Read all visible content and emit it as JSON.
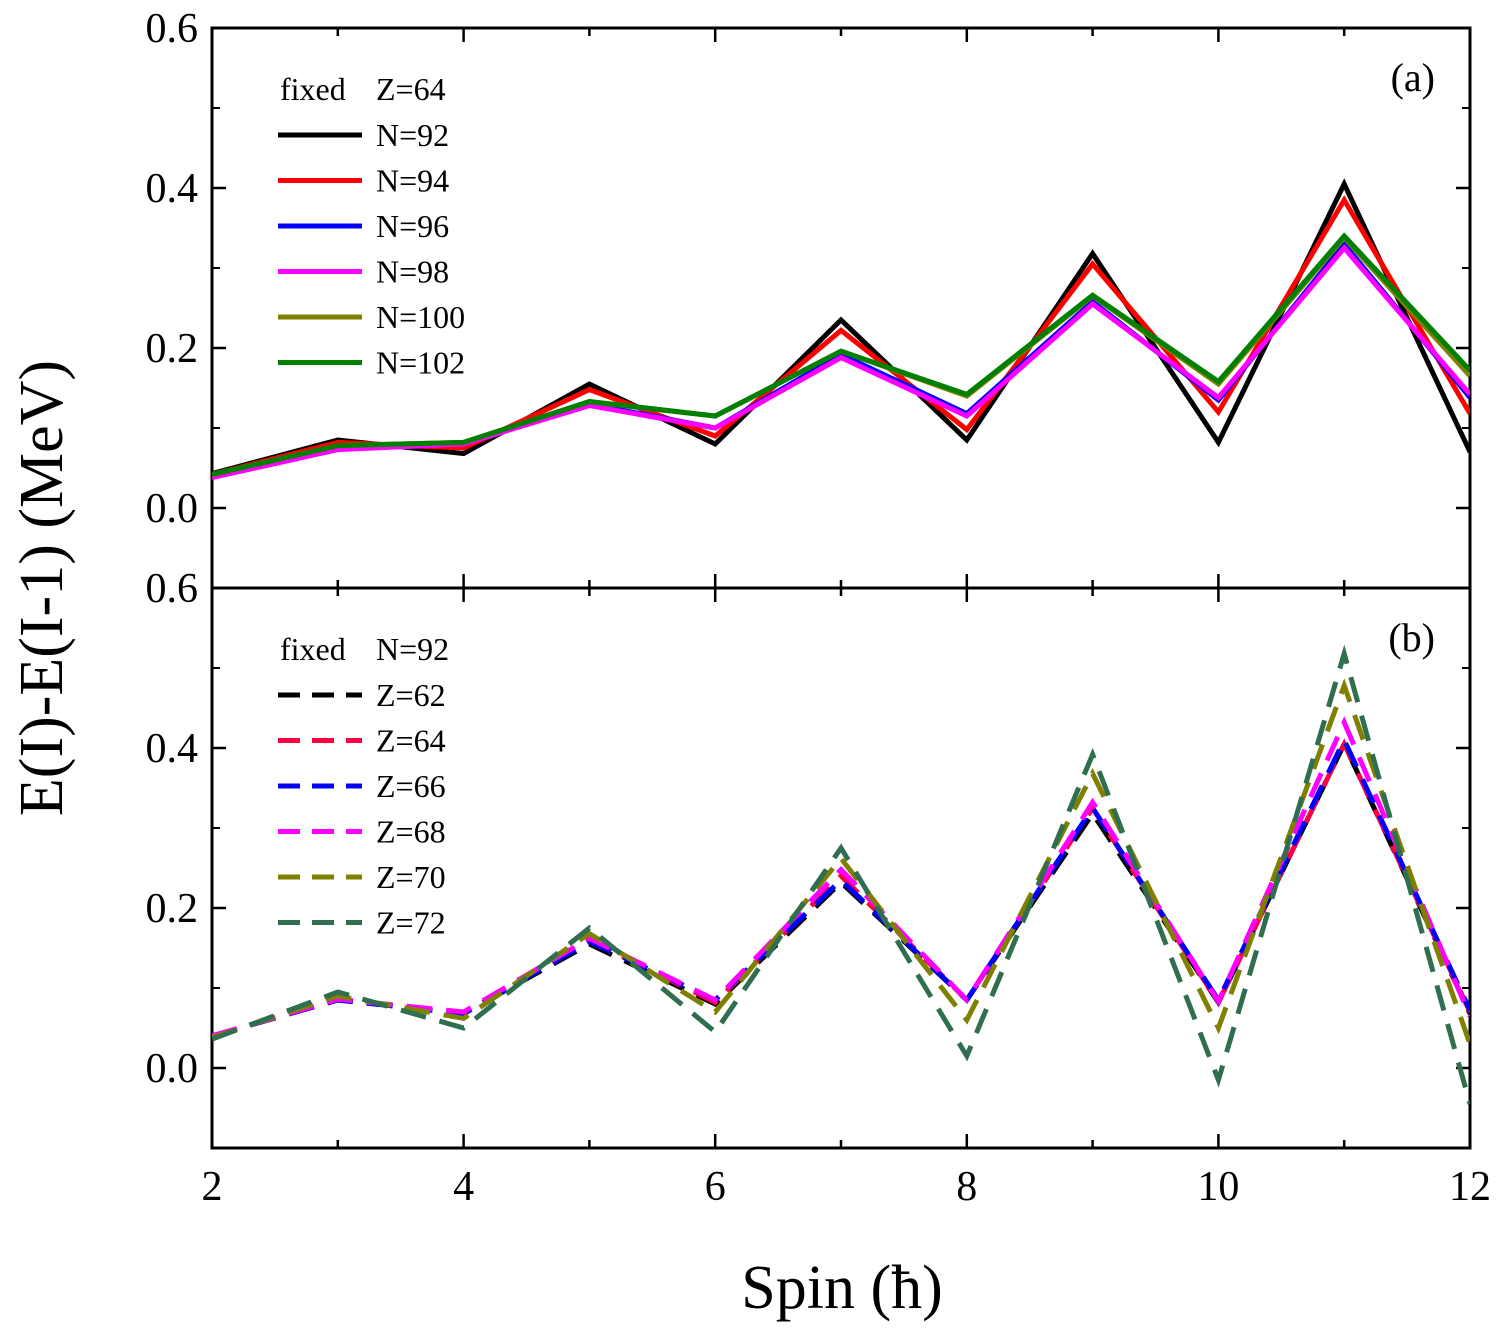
{
  "chart_data": [
    {
      "type": "line",
      "panel_label": "(a)",
      "legend_header": [
        "fixed",
        "Z=64"
      ],
      "line_style": "solid",
      "x": [
        2,
        3,
        4,
        5,
        6,
        7,
        8,
        9,
        10,
        11,
        12
      ],
      "xlim": [
        2,
        12
      ],
      "ylim": [
        -0.1,
        0.6
      ],
      "yticks": [
        0.0,
        0.2,
        0.4,
        0.6
      ],
      "ytick_labels": [
        "0.0",
        "0.2",
        "0.4",
        "0.6"
      ],
      "legend_position": "top-left",
      "grid": false,
      "series": [
        {
          "name": "N=92",
          "color": "#000000",
          "values": [
            0.043,
            0.085,
            0.068,
            0.155,
            0.08,
            0.235,
            0.085,
            0.318,
            0.082,
            0.405,
            0.07
          ]
        },
        {
          "name": "N=94",
          "color": "#ff0000",
          "values": [
            0.042,
            0.082,
            0.075,
            0.148,
            0.09,
            0.222,
            0.098,
            0.305,
            0.12,
            0.385,
            0.118
          ]
        },
        {
          "name": "N=96",
          "color": "#0000ff",
          "values": [
            0.04,
            0.076,
            0.08,
            0.13,
            0.1,
            0.192,
            0.118,
            0.258,
            0.135,
            0.33,
            0.138
          ]
        },
        {
          "name": "N=98",
          "color": "#ff00ff",
          "values": [
            0.038,
            0.073,
            0.08,
            0.128,
            0.1,
            0.188,
            0.115,
            0.255,
            0.138,
            0.325,
            0.142
          ]
        },
        {
          "name": "N=100",
          "color": "#808000",
          "values": [
            0.042,
            0.078,
            0.082,
            0.133,
            0.115,
            0.196,
            0.14,
            0.265,
            0.155,
            0.338,
            0.165
          ]
        },
        {
          "name": "N=102",
          "color": "#008000",
          "values": [
            0.042,
            0.078,
            0.082,
            0.133,
            0.115,
            0.196,
            0.142,
            0.266,
            0.158,
            0.34,
            0.172
          ]
        }
      ]
    },
    {
      "type": "line",
      "panel_label": "(b)",
      "legend_header": [
        "fixed",
        "N=92"
      ],
      "line_style": "dashed",
      "x": [
        2,
        3,
        4,
        5,
        6,
        7,
        8,
        9,
        10,
        11,
        12
      ],
      "xlim": [
        2,
        12
      ],
      "xticks": [
        2,
        4,
        6,
        8,
        10,
        12
      ],
      "xtick_labels": [
        "2",
        "4",
        "6",
        "8",
        "10",
        "12"
      ],
      "ylim": [
        -0.1,
        0.6
      ],
      "yticks": [
        0.0,
        0.2,
        0.4,
        0.6
      ],
      "ytick_labels": [
        "0.0",
        "0.2",
        "0.4",
        "0.6"
      ],
      "legend_position": "top-left",
      "grid": false,
      "series": [
        {
          "name": "Z=62",
          "color": "#000000",
          "values": [
            0.04,
            0.085,
            0.068,
            0.155,
            0.08,
            0.232,
            0.085,
            0.318,
            0.082,
            0.405,
            0.068
          ]
        },
        {
          "name": "Z=64",
          "color": "#ff0040",
          "values": [
            0.04,
            0.086,
            0.068,
            0.16,
            0.082,
            0.24,
            0.085,
            0.325,
            0.082,
            0.405,
            0.07
          ]
        },
        {
          "name": "Z=66",
          "color": "#0000ff",
          "values": [
            0.04,
            0.085,
            0.068,
            0.158,
            0.085,
            0.235,
            0.085,
            0.325,
            0.085,
            0.41,
            0.072
          ]
        },
        {
          "name": "Z=68",
          "color": "#ff00ff",
          "values": [
            0.04,
            0.086,
            0.07,
            0.162,
            0.085,
            0.248,
            0.085,
            0.332,
            0.083,
            0.432,
            0.065
          ]
        },
        {
          "name": "Z=70",
          "color": "#808000",
          "values": [
            0.038,
            0.09,
            0.062,
            0.168,
            0.07,
            0.262,
            0.06,
            0.368,
            0.05,
            0.478,
            0.03
          ]
        },
        {
          "name": "Z=72",
          "color": "#2f6f4f",
          "values": [
            0.036,
            0.095,
            0.05,
            0.175,
            0.045,
            0.275,
            0.015,
            0.392,
            -0.015,
            0.518,
            -0.045
          ]
        }
      ]
    }
  ],
  "xlabel": "Spin (ħ)",
  "ylabel": "E(I)-E(I-1) (MeV)"
}
